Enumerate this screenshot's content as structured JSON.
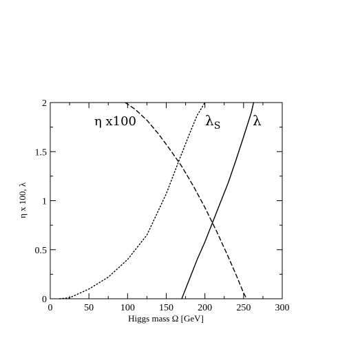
{
  "chart_data": {
    "type": "line",
    "xlabel": "Higgs mass Ω [GeV]",
    "ylabel": "η x 100, λ",
    "xlim": [
      0,
      300
    ],
    "ylim": [
      0,
      2
    ],
    "xticks": [
      "0",
      "50",
      "100",
      "150",
      "200",
      "250",
      "300"
    ],
    "yticks": [
      "0",
      "0.5",
      "1",
      "1.5",
      "2"
    ],
    "grid": false,
    "series": [
      {
        "name": "η x100",
        "style": "dashed",
        "x": [
          97,
          110,
          125,
          140,
          155,
          170,
          185,
          200,
          215,
          230,
          240,
          250,
          254
        ],
        "y": [
          2.0,
          1.93,
          1.82,
          1.68,
          1.52,
          1.35,
          1.15,
          0.93,
          0.69,
          0.43,
          0.25,
          0.06,
          0.0
        ]
      },
      {
        "name": "λ",
        "name_sub": "S",
        "style": "dotted",
        "x": [
          12,
          25,
          50,
          75,
          100,
          125,
          150,
          165,
          180,
          190,
          200
        ],
        "y": [
          0.0,
          0.01,
          0.1,
          0.22,
          0.4,
          0.65,
          1.07,
          1.38,
          1.68,
          1.87,
          2.0
        ]
      },
      {
        "name": "λ",
        "style": "solid",
        "x": [
          170,
          180,
          190,
          200,
          210,
          220,
          230,
          240,
          250,
          260,
          263
        ],
        "y": [
          0.0,
          0.2,
          0.4,
          0.58,
          0.78,
          0.98,
          1.18,
          1.41,
          1.65,
          1.9,
          2.0
        ]
      }
    ]
  }
}
